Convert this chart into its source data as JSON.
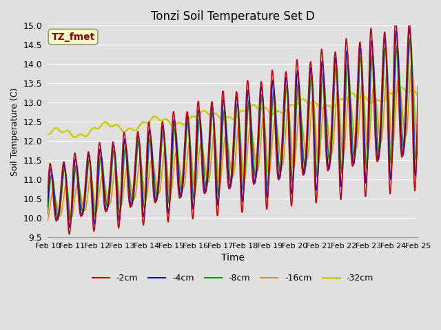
{
  "title": "Tonzi Soil Temperature Set D",
  "xlabel": "Time",
  "ylabel": "Soil Temperature (C)",
  "ylim": [
    9.5,
    15.0
  ],
  "bg_color": "#e0e0e0",
  "plot_bg_color": "#e0e0e0",
  "annotation_text": "TZ_fmet",
  "annotation_color": "#8b0000",
  "annotation_bg": "#ffffcc",
  "legend_entries": [
    "-2cm",
    "-4cm",
    "-8cm",
    "-16cm",
    "-32cm"
  ],
  "line_colors": [
    "#cc0000",
    "#0000cc",
    "#009900",
    "#ff8800",
    "#cccc00"
  ],
  "line_widths": [
    1.2,
    1.2,
    1.2,
    1.2,
    1.8
  ],
  "yticks": [
    9.5,
    10.0,
    10.5,
    11.0,
    11.5,
    12.0,
    12.5,
    13.0,
    13.5,
    14.0,
    14.5,
    15.0
  ]
}
